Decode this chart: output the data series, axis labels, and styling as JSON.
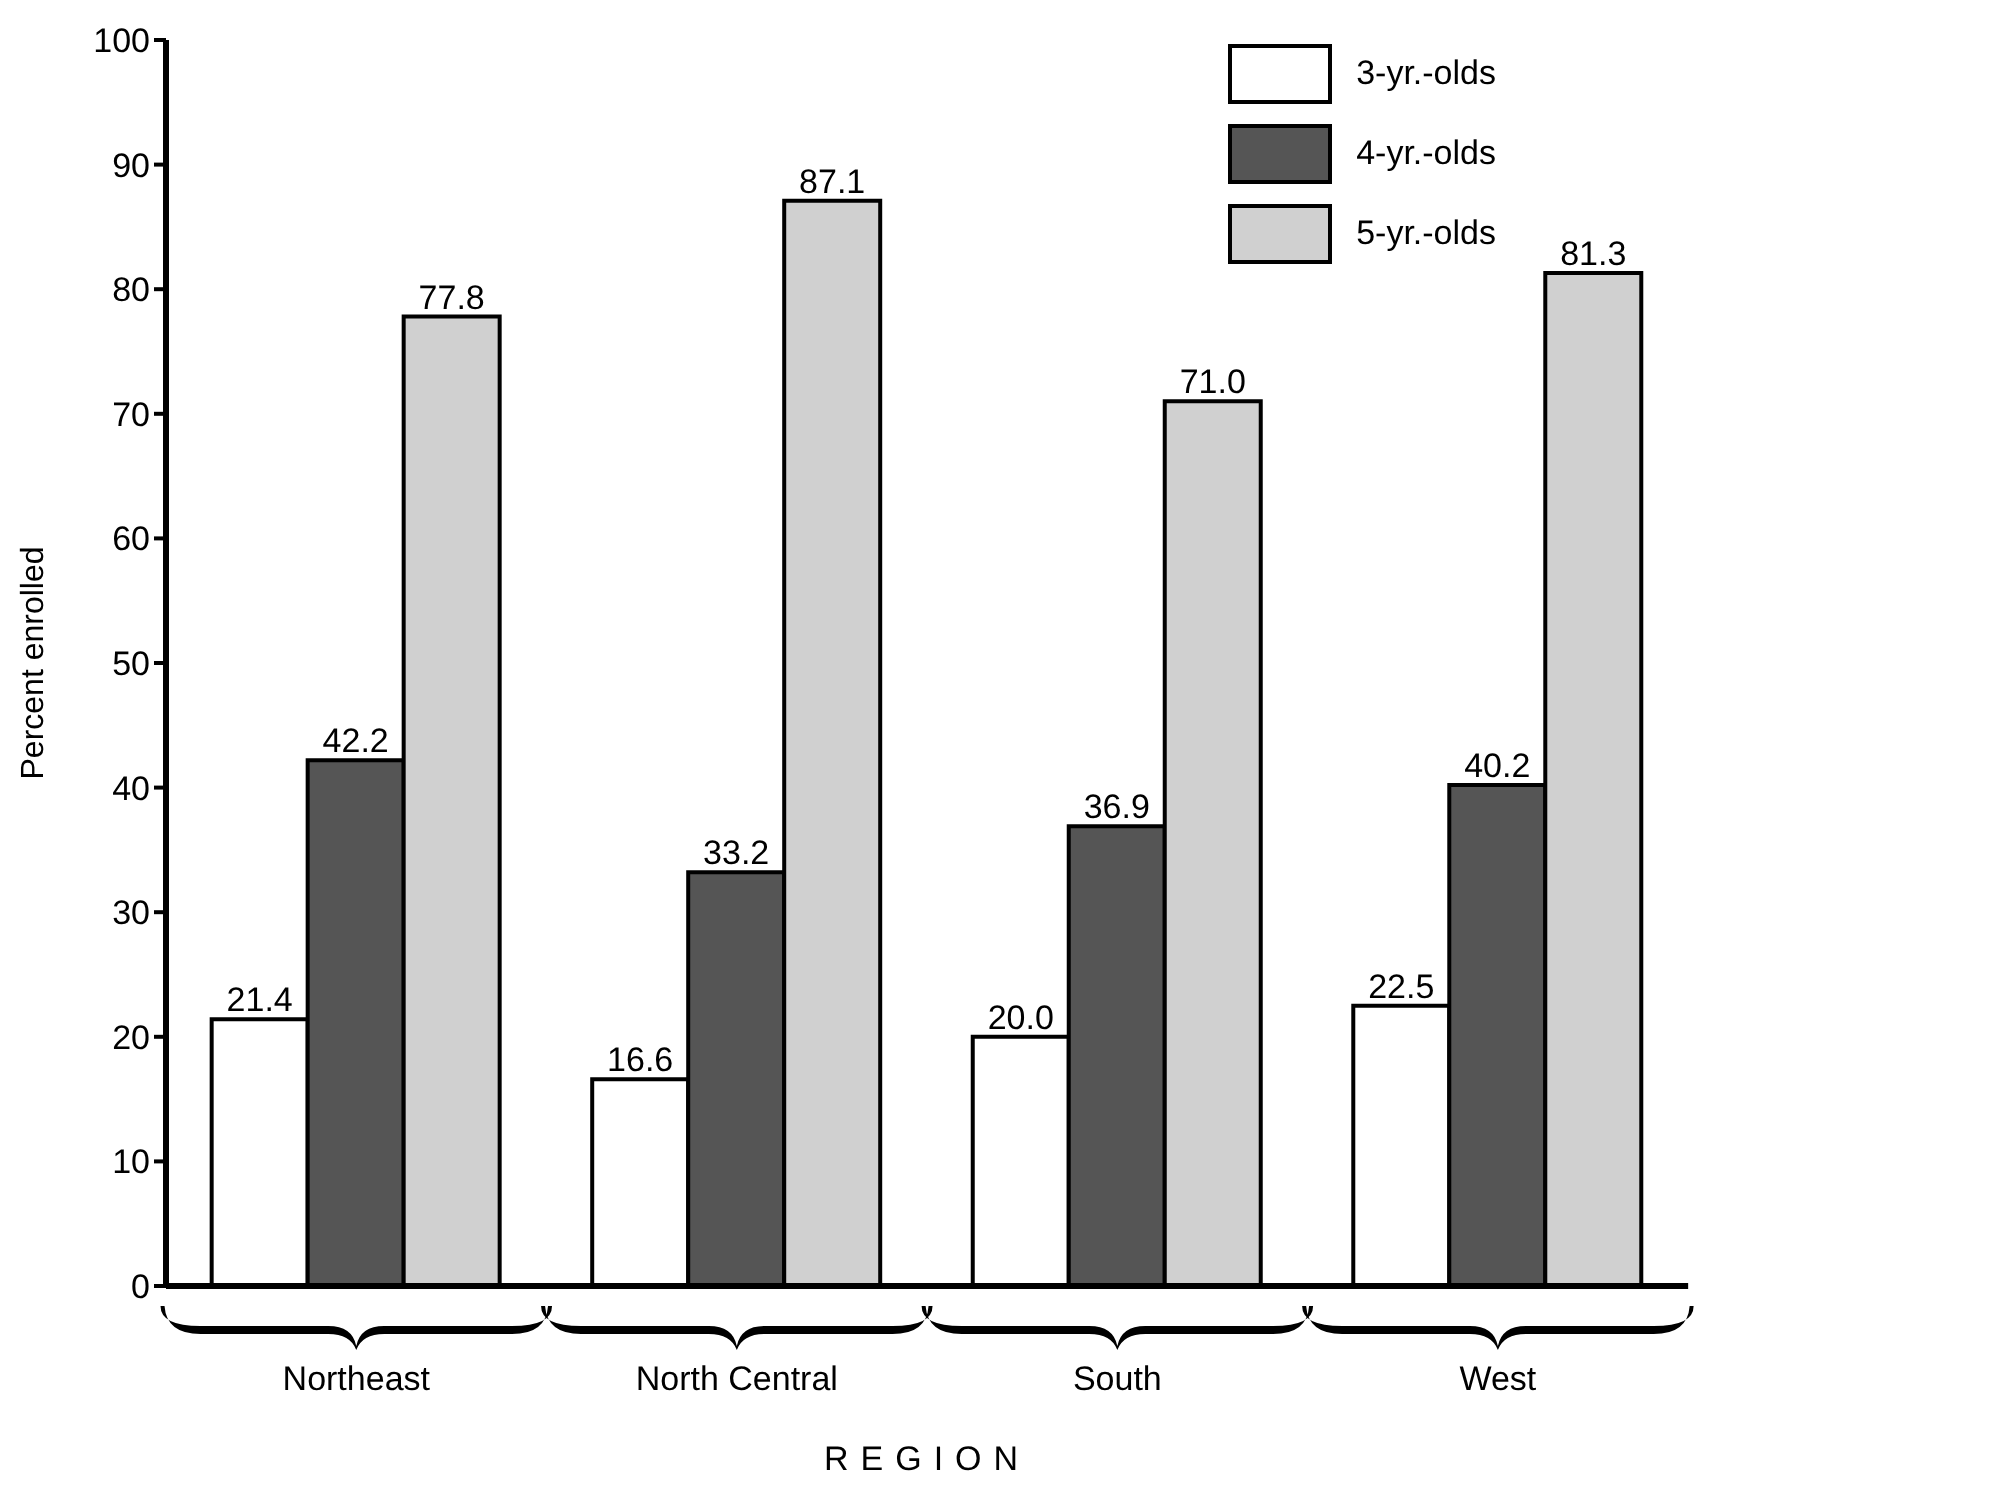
{
  "chart_data": {
    "type": "bar",
    "xlabel": "REGION",
    "ylabel": "Percent enrolled",
    "categories": [
      "Northeast",
      "North Central",
      "South",
      "West"
    ],
    "series": [
      {
        "name": "3-yr.-olds",
        "color": "#ffffff",
        "values": [
          21.4,
          16.6,
          20.0,
          22.5
        ],
        "value_labels": [
          "21.4",
          "16.6",
          "20.0",
          "22.5"
        ]
      },
      {
        "name": "4-yr.-olds",
        "color": "#555555",
        "values": [
          42.2,
          33.2,
          36.9,
          40.2
        ],
        "value_labels": [
          "42.2",
          "33.2",
          "36.9",
          "40.2"
        ]
      },
      {
        "name": "5-yr.-olds",
        "color": "#d0d0d0",
        "values": [
          77.8,
          87.1,
          71.0,
          81.3
        ],
        "value_labels": [
          "77.8",
          "87.1",
          "71.0",
          "81.3"
        ]
      }
    ],
    "ylim": [
      0,
      100
    ],
    "yticks": [
      0,
      10,
      20,
      30,
      40,
      50,
      60,
      70,
      80,
      90,
      100
    ],
    "grid": false,
    "legend": "top right"
  }
}
